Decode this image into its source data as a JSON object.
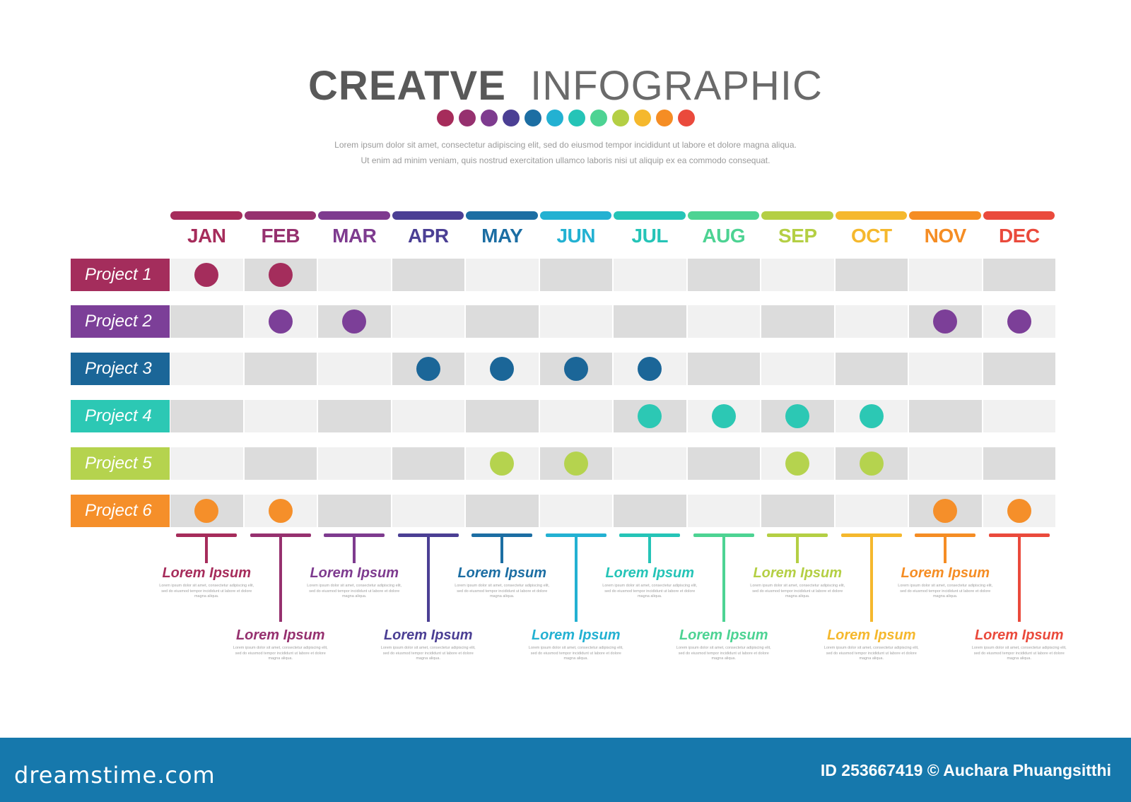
{
  "title": {
    "bold": "CREATVE",
    "light": "INFOGRAPHIC"
  },
  "description": [
    "Lorem ipsum dolor sit amet, consectetur adipiscing elit, sed do eiusmod tempor incididunt  ut labore et dolore magna aliqua.",
    "Ut enim ad minim veniam, quis nostrud exercitation ullamco laboris nisi ut aliquip ex ea commodo consequat."
  ],
  "palette": [
    "#a62c5b",
    "#96316f",
    "#7e3b8f",
    "#4b3f94",
    "#1c6ea3",
    "#23b1d2",
    "#25c4b7",
    "#4dd393",
    "#b4cf44",
    "#f5b82d",
    "#f58d24",
    "#ea4a3c"
  ],
  "months": [
    {
      "label": "JAN",
      "color": "#a62c5b"
    },
    {
      "label": "FEB",
      "color": "#96316f"
    },
    {
      "label": "MAR",
      "color": "#7e3b8f"
    },
    {
      "label": "APR",
      "color": "#4b3f94"
    },
    {
      "label": "MAY",
      "color": "#1c6ea3"
    },
    {
      "label": "JUN",
      "color": "#23b1d2"
    },
    {
      "label": "JUL",
      "color": "#25c4b7"
    },
    {
      "label": "AUG",
      "color": "#4dd393"
    },
    {
      "label": "SEP",
      "color": "#b4cf44"
    },
    {
      "label": "OCT",
      "color": "#f5b82d"
    },
    {
      "label": "NOV",
      "color": "#f58d24"
    },
    {
      "label": "DEC",
      "color": "#ea4a3c"
    }
  ],
  "projects": [
    {
      "label": "Project 1",
      "color": "#a42d5c",
      "active_months": [
        0,
        1
      ]
    },
    {
      "label": "Project 2",
      "color": "#7c3f98",
      "active_months": [
        1,
        2,
        10,
        11
      ]
    },
    {
      "label": "Project 3",
      "color": "#1b6698",
      "active_months": [
        3,
        4,
        5,
        6
      ]
    },
    {
      "label": "Project 4",
      "color": "#2cc8b4",
      "active_months": [
        6,
        7,
        8,
        9
      ]
    },
    {
      "label": "Project 5",
      "color": "#b5d34e",
      "active_months": [
        4,
        5,
        8,
        9
      ]
    },
    {
      "label": "Project 6",
      "color": "#f58f2a",
      "active_months": [
        0,
        1,
        10,
        11
      ]
    }
  ],
  "notes": {
    "title": "Lorem Ipsum",
    "text": "Lorem ipsum dolor sit amet, consectetur adipiscing elit, sed do eiusmod tempor incididunt ut labore et dolore magna aliqua."
  },
  "footer": {
    "brand": "dreamstime.com",
    "credit": "ID 253667419 © Auchara Phuangsitthi",
    "color": "#1678ac"
  }
}
